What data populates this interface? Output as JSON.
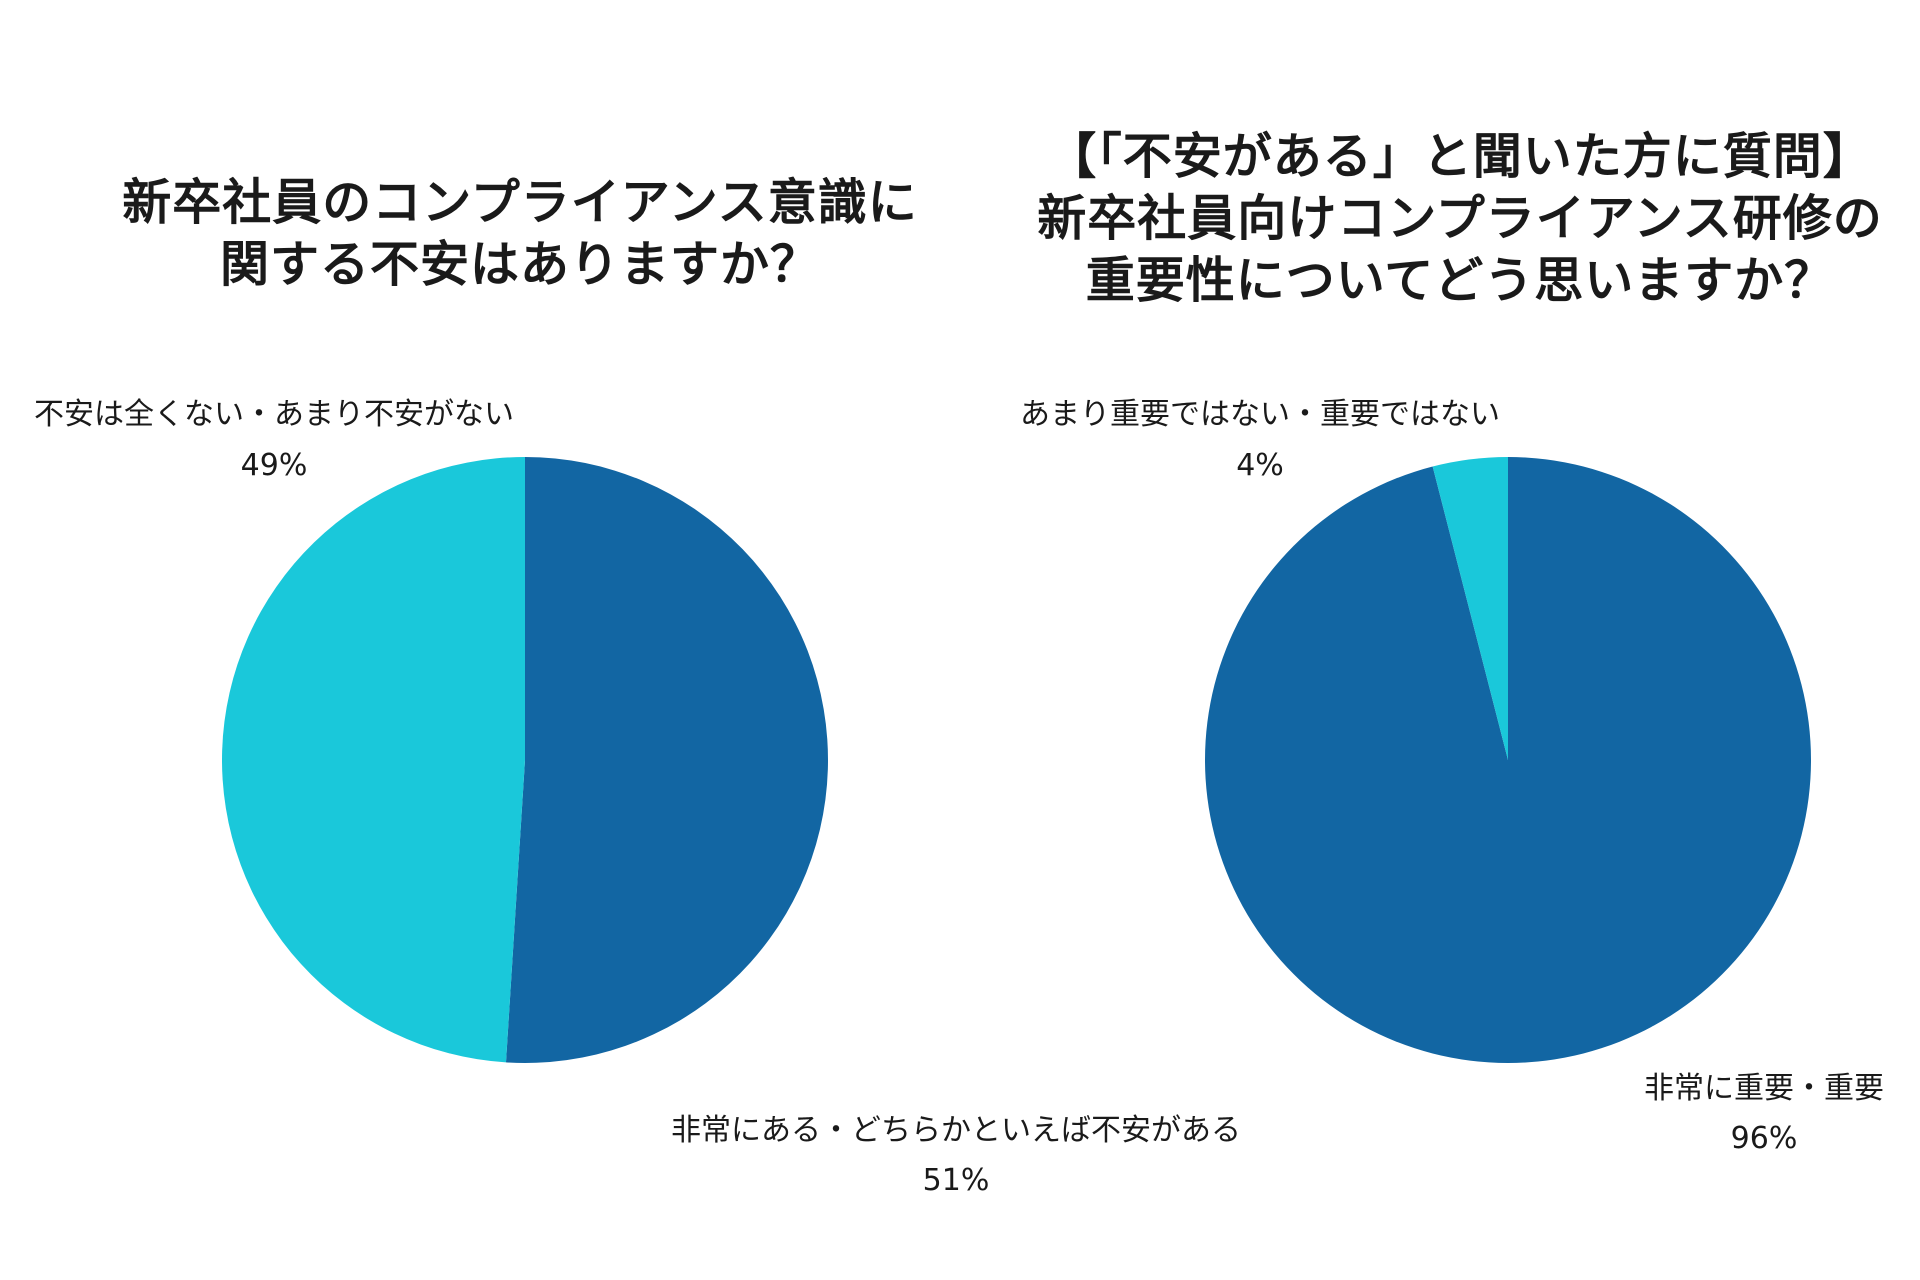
{
  "colors": {
    "dark_blue": "#1266a3",
    "light_cyan": "#1ac8da"
  },
  "chart_data": [
    {
      "type": "pie",
      "title_lines": [
        "新卒社員のコンプライアンス意識に",
        "関する不安はありますか？"
      ],
      "slices": [
        {
          "label": "非常にある・どちらかといえば不安がある",
          "value": 51,
          "value_label": "51%",
          "color": "#1266a3"
        },
        {
          "label": "不安は全くない・あまり不安がない",
          "value": 49,
          "value_label": "49%",
          "color": "#1ac8da"
        }
      ]
    },
    {
      "type": "pie",
      "title_lines": [
        "【「不安がある」と聞いた方に質問】",
        "新卒社員向けコンプライアンス研修の",
        "重要性についてどう思いますか？"
      ],
      "slices": [
        {
          "label": "非常に重要・重要",
          "value": 96,
          "value_label": "96%",
          "color": "#1266a3"
        },
        {
          "label": "あまり重要ではない・重要ではない",
          "value": 4,
          "value_label": "4%",
          "color": "#1ac8da"
        }
      ]
    }
  ]
}
